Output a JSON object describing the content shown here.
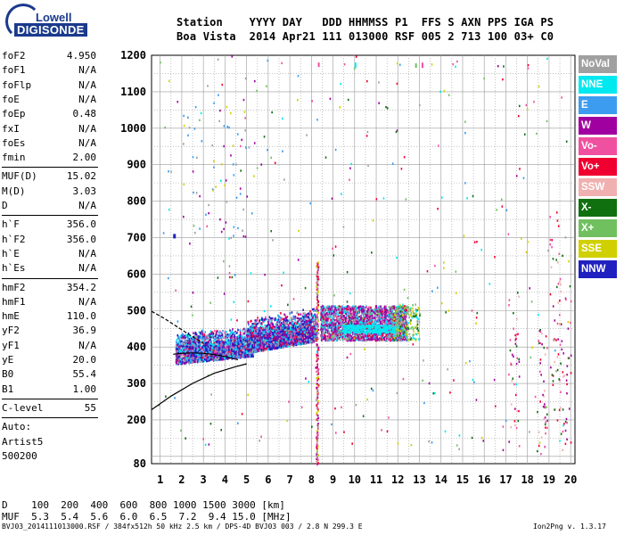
{
  "logo": {
    "line1": "Lowell",
    "line2": "DIGISONDE"
  },
  "header": {
    "row1": "Station    YYYY DAY   DDD HHMMSS P1  FFS S AXN PPS IGA PS",
    "row2": "Boa Vista  2014 Apr21 111 013000 RSF 005 2 713 100 03+ C0"
  },
  "params": {
    "group1": [
      [
        "foF2",
        "4.950"
      ],
      [
        "foF1",
        "N/A"
      ],
      [
        "foFlp",
        "N/A"
      ],
      [
        "foE",
        "N/A"
      ],
      [
        "foEp",
        "0.48"
      ],
      [
        "fxI",
        "N/A"
      ],
      [
        "foEs",
        "N/A"
      ],
      [
        "fmin",
        "2.00"
      ]
    ],
    "group2": [
      [
        "MUF(D)",
        "15.02"
      ],
      [
        "M(D)",
        "3.03"
      ],
      [
        "D",
        "N/A"
      ]
    ],
    "group3": [
      [
        "h`F",
        "356.0"
      ],
      [
        "h`F2",
        "356.0"
      ],
      [
        "h`E",
        "N/A"
      ],
      [
        "h`Es",
        "N/A"
      ]
    ],
    "group4": [
      [
        "hmF2",
        "354.2"
      ],
      [
        "hmF1",
        "N/A"
      ],
      [
        "hmE",
        "110.0"
      ],
      [
        "yF2",
        "36.9"
      ],
      [
        "yF1",
        "N/A"
      ],
      [
        "yE",
        "20.0"
      ],
      [
        "B0",
        "55.4"
      ],
      [
        "B1",
        "1.00"
      ]
    ],
    "clevel": [
      "C-level",
      "55"
    ],
    "auto": [
      "Auto:",
      "Artist5",
      "500200"
    ]
  },
  "footer": {
    "row1": "D    100  200  400  600  800 1000 1500 3000 [km]",
    "row2": "MUF  5.3  5.4  5.6  6.0  6.5  7.2  9.4 15.0 [MHz]",
    "bottom_left": "BVJ03_2014111013000.RSF / 384fx512h 50 kHz 2.5 km / DPS-4D BVJ03 003 / 2.8 N 299.3 E",
    "bottom_right": "Ion2Png v. 1.3.17"
  },
  "legend": [
    {
      "label": "NoVal",
      "color": "#a0a0a0"
    },
    {
      "label": "NNE",
      "color": "#00e8f0"
    },
    {
      "label": "E",
      "color": "#3c9cf0"
    },
    {
      "label": "W",
      "color": "#a000a0"
    },
    {
      "label": "Vo-",
      "color": "#f050a0"
    },
    {
      "label": "Vo+",
      "color": "#f00030"
    },
    {
      "label": "SSW",
      "color": "#f0b0b0"
    },
    {
      "label": "X-",
      "color": "#107010"
    },
    {
      "label": "X+",
      "color": "#70c060"
    },
    {
      "label": "SSE",
      "color": "#d0d000"
    },
    {
      "label": "NNW",
      "color": "#2020c0"
    }
  ],
  "chart_data": {
    "type": "scatter",
    "title": "",
    "xlabel": "",
    "ylabel": "",
    "xlim": [
      0.6,
      20.2
    ],
    "ylim": [
      80,
      1200
    ],
    "x_ticks": [
      1,
      2,
      3,
      4,
      5,
      6,
      7,
      8,
      9,
      10,
      11,
      12,
      13,
      14,
      15,
      16,
      17,
      18,
      19,
      20
    ],
    "y_ticks": [
      80,
      100,
      200,
      300,
      400,
      500,
      600,
      700,
      800,
      900,
      1000,
      1100,
      1200
    ],
    "y_tick_labels": [
      "80",
      "",
      "200",
      "300",
      "400",
      "500",
      "600",
      "700",
      "800",
      "900",
      "1000",
      "1100",
      "1200"
    ],
    "grid": true,
    "legend_position": "right",
    "series": [
      {
        "type": "echo_cloud",
        "freq_range": [
          1.8,
          5.2
        ],
        "height_range": [
          355,
          420
        ]
      },
      {
        "type": "echo_cloud",
        "freq_range": [
          5.0,
          8.0
        ],
        "height_range": [
          380,
          470
        ]
      },
      {
        "type": "echo_cloud",
        "freq_range": [
          8.2,
          12.5
        ],
        "height_range": [
          420,
          520
        ]
      },
      {
        "type": "profile_curve",
        "points": [
          [
            0.6,
            228
          ],
          [
            1.5,
            265
          ],
          [
            2.5,
            300
          ],
          [
            3.5,
            328
          ],
          [
            4.5,
            346
          ],
          [
            5.0,
            354
          ]
        ]
      },
      {
        "type": "trace_dashed",
        "points": [
          [
            0.6,
            498
          ],
          [
            1.2,
            478
          ],
          [
            1.8,
            455
          ],
          [
            2.4,
            432
          ],
          [
            3.0,
            410
          ]
        ]
      }
    ]
  }
}
